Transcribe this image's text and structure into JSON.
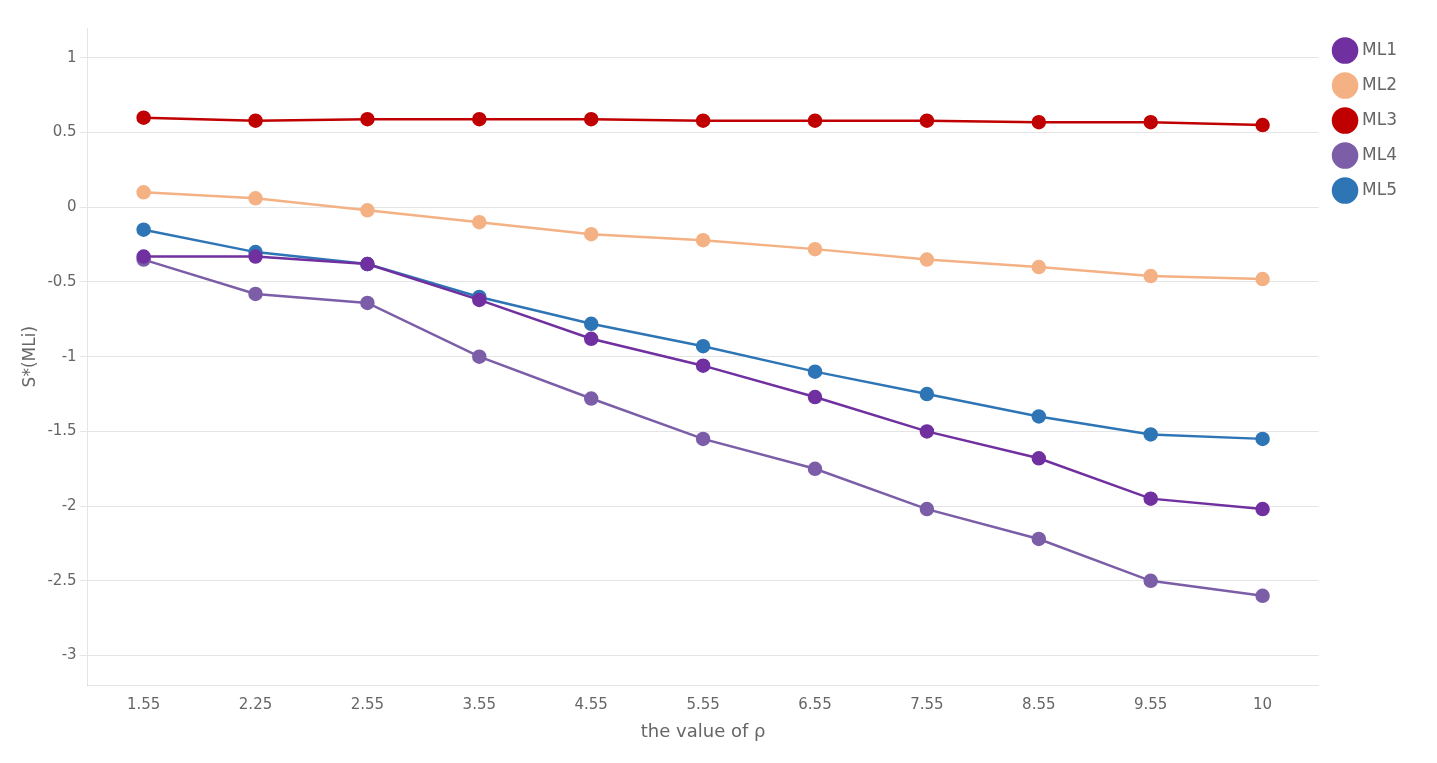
{
  "chart_data": {
    "type": "line",
    "x_label": "the value of ρ",
    "y_label": "S*(MLi)",
    "categories": [
      "1.55",
      "2.25",
      "2.55",
      "3.55",
      "4.55",
      "5.55",
      "6.55",
      "7.55",
      "8.55",
      "9.55",
      "10"
    ],
    "series": [
      {
        "name": "ML1",
        "color": "#7030A0",
        "marker": "circle",
        "values": [
          -0.33,
          -0.33,
          -0.38,
          -0.62,
          -0.88,
          -1.06,
          -1.27,
          -1.5,
          -1.68,
          -1.95,
          -2.02
        ]
      },
      {
        "name": "ML2",
        "color": "#F4B183",
        "marker": "circle",
        "values": [
          0.1,
          0.06,
          -0.02,
          -0.1,
          -0.18,
          -0.22,
          -0.28,
          -0.35,
          -0.4,
          -0.46,
          -0.48
        ]
      },
      {
        "name": "ML3",
        "color": "#C00000",
        "marker": "circle",
        "values": [
          0.6,
          0.58,
          0.59,
          0.59,
          0.59,
          0.58,
          0.58,
          0.58,
          0.57,
          0.57,
          0.55
        ]
      },
      {
        "name": "ML4",
        "color": "#7B5EA7",
        "marker": "circle",
        "values": [
          -0.35,
          -0.58,
          -0.64,
          -1.0,
          -1.28,
          -1.55,
          -1.75,
          -2.02,
          -2.22,
          -2.5,
          -2.6
        ]
      },
      {
        "name": "ML5",
        "color": "#2E75B6",
        "marker": "circle",
        "values": [
          -0.15,
          -0.3,
          -0.38,
          -0.6,
          -0.78,
          -0.93,
          -1.1,
          -1.25,
          -1.4,
          -1.52,
          -1.55
        ]
      }
    ],
    "ylim": [
      -3.2,
      1.2
    ],
    "yticks": [
      1,
      0.5,
      0,
      -0.5,
      -1,
      -1.5,
      -2,
      -2.5,
      -3
    ],
    "grid": "y",
    "legend": "right"
  }
}
